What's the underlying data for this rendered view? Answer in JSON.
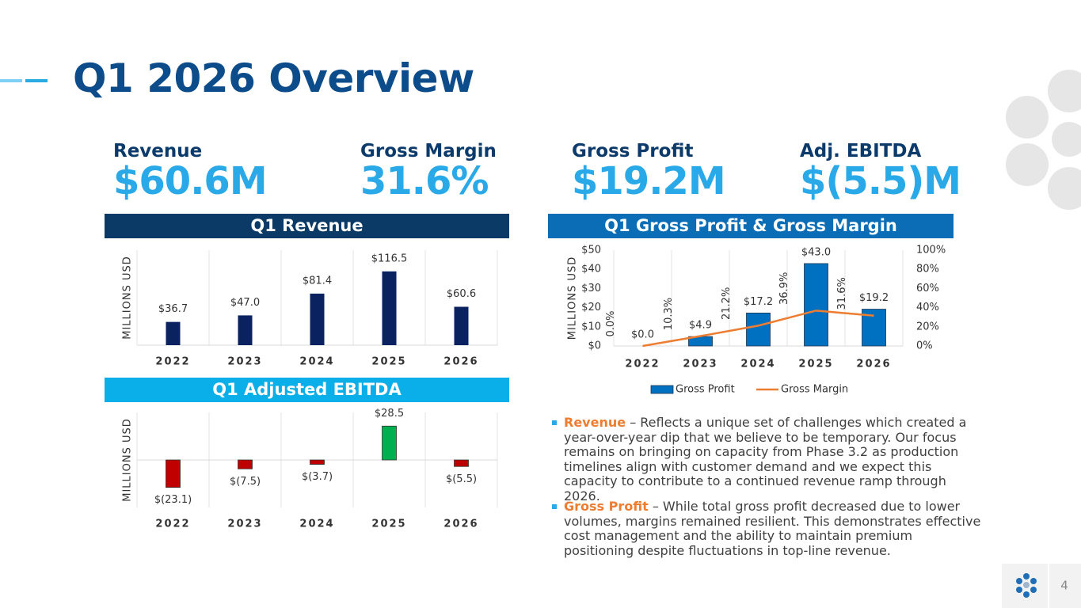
{
  "slide": {
    "title": "Q1 2026 Overview",
    "kpis": [
      {
        "label": "Revenue",
        "value": "$60.6M"
      },
      {
        "label": "Gross Margin",
        "value": "31.6%"
      },
      {
        "label": "Gross Profit",
        "value": "$19.2M"
      },
      {
        "label": "Adj. EBITDA",
        "value": "$(5.5)M"
      }
    ],
    "bullets": [
      {
        "heading": "Revenue",
        "text": "– Reflects a unique set of challenges which created a year-over-year dip that we believe to be temporary. Our focus remains on bringing on capacity from Phase 3.2 as production timelines align with customer demand and we expect this capacity to contribute to a continued revenue ramp through 2026."
      },
      {
        "heading": "Gross Profit",
        "text": "– While total gross profit decreased due to lower volumes, margins remained resilient. This demonstrates effective cost management and the ability to maintain premium positioning despite fluctuations in top-line revenue."
      }
    ],
    "page_number": "4"
  },
  "chart_data": [
    {
      "type": "bar",
      "title": "Q1 Revenue",
      "y_label": "MILLIONS USD",
      "categories": [
        "2022",
        "2023",
        "2024",
        "2025",
        "2026"
      ],
      "values": [
        36.7,
        47.0,
        81.4,
        116.5,
        60.6
      ],
      "value_labels": [
        "$36.7",
        "$47.0",
        "$81.4",
        "$116.5",
        "$60.6"
      ],
      "color": "#0b2260",
      "ylim": [
        0,
        150
      ]
    },
    {
      "type": "bar",
      "title": "Q1 Adjusted EBITDA",
      "y_label": "MILLIONS USD",
      "categories": [
        "2022",
        "2023",
        "2024",
        "2025",
        "2026"
      ],
      "values": [
        -23.1,
        -7.5,
        -3.7,
        28.5,
        -5.5
      ],
      "value_labels": [
        "$(23.1)",
        "$(7.5)",
        "$(3.7)",
        "$28.5",
        "$(5.5)"
      ],
      "colors": [
        "#c00000",
        "#c00000",
        "#c00000",
        "#00b050",
        "#c00000"
      ],
      "ylim": [
        -40,
        40
      ]
    },
    {
      "type": "combo",
      "title": "Q1 Gross Profit & Gross Margin",
      "y_label": "MILLIONS USD",
      "categories": [
        "2022",
        "2023",
        "2024",
        "2025",
        "2026"
      ],
      "series": [
        {
          "name": "Gross Profit",
          "color": "#0070c0",
          "values": [
            0.0,
            4.9,
            17.2,
            43.0,
            19.2
          ],
          "value_labels": [
            "$0.0",
            "$4.9",
            "$17.2",
            "$43.0",
            "$19.2"
          ]
        },
        {
          "name": "Gross Margin",
          "color": "#ed7d31",
          "axis": "y2",
          "values": [
            0.0,
            10.3,
            21.2,
            36.9,
            31.6
          ],
          "value_labels": [
            "0.0%",
            "10.3%",
            "21.2%",
            "36.9%",
            "31.6%"
          ]
        }
      ],
      "ylim": [
        0,
        50
      ],
      "yticks": [
        {
          "value": 0,
          "label": "$0"
        },
        {
          "value": 10,
          "label": "$10"
        },
        {
          "value": 20,
          "label": "$20"
        },
        {
          "value": 30,
          "label": "$30"
        },
        {
          "value": 40,
          "label": "$40"
        },
        {
          "value": 50,
          "label": "$50"
        }
      ],
      "y2lim": [
        0,
        100
      ],
      "y2ticks": [
        {
          "value": 0,
          "label": "0%"
        },
        {
          "value": 20,
          "label": "20%"
        },
        {
          "value": 40,
          "label": "40%"
        },
        {
          "value": 60,
          "label": "60%"
        },
        {
          "value": 80,
          "label": "80%"
        },
        {
          "value": 100,
          "label": "100%"
        }
      ],
      "legend": "bottom"
    }
  ]
}
